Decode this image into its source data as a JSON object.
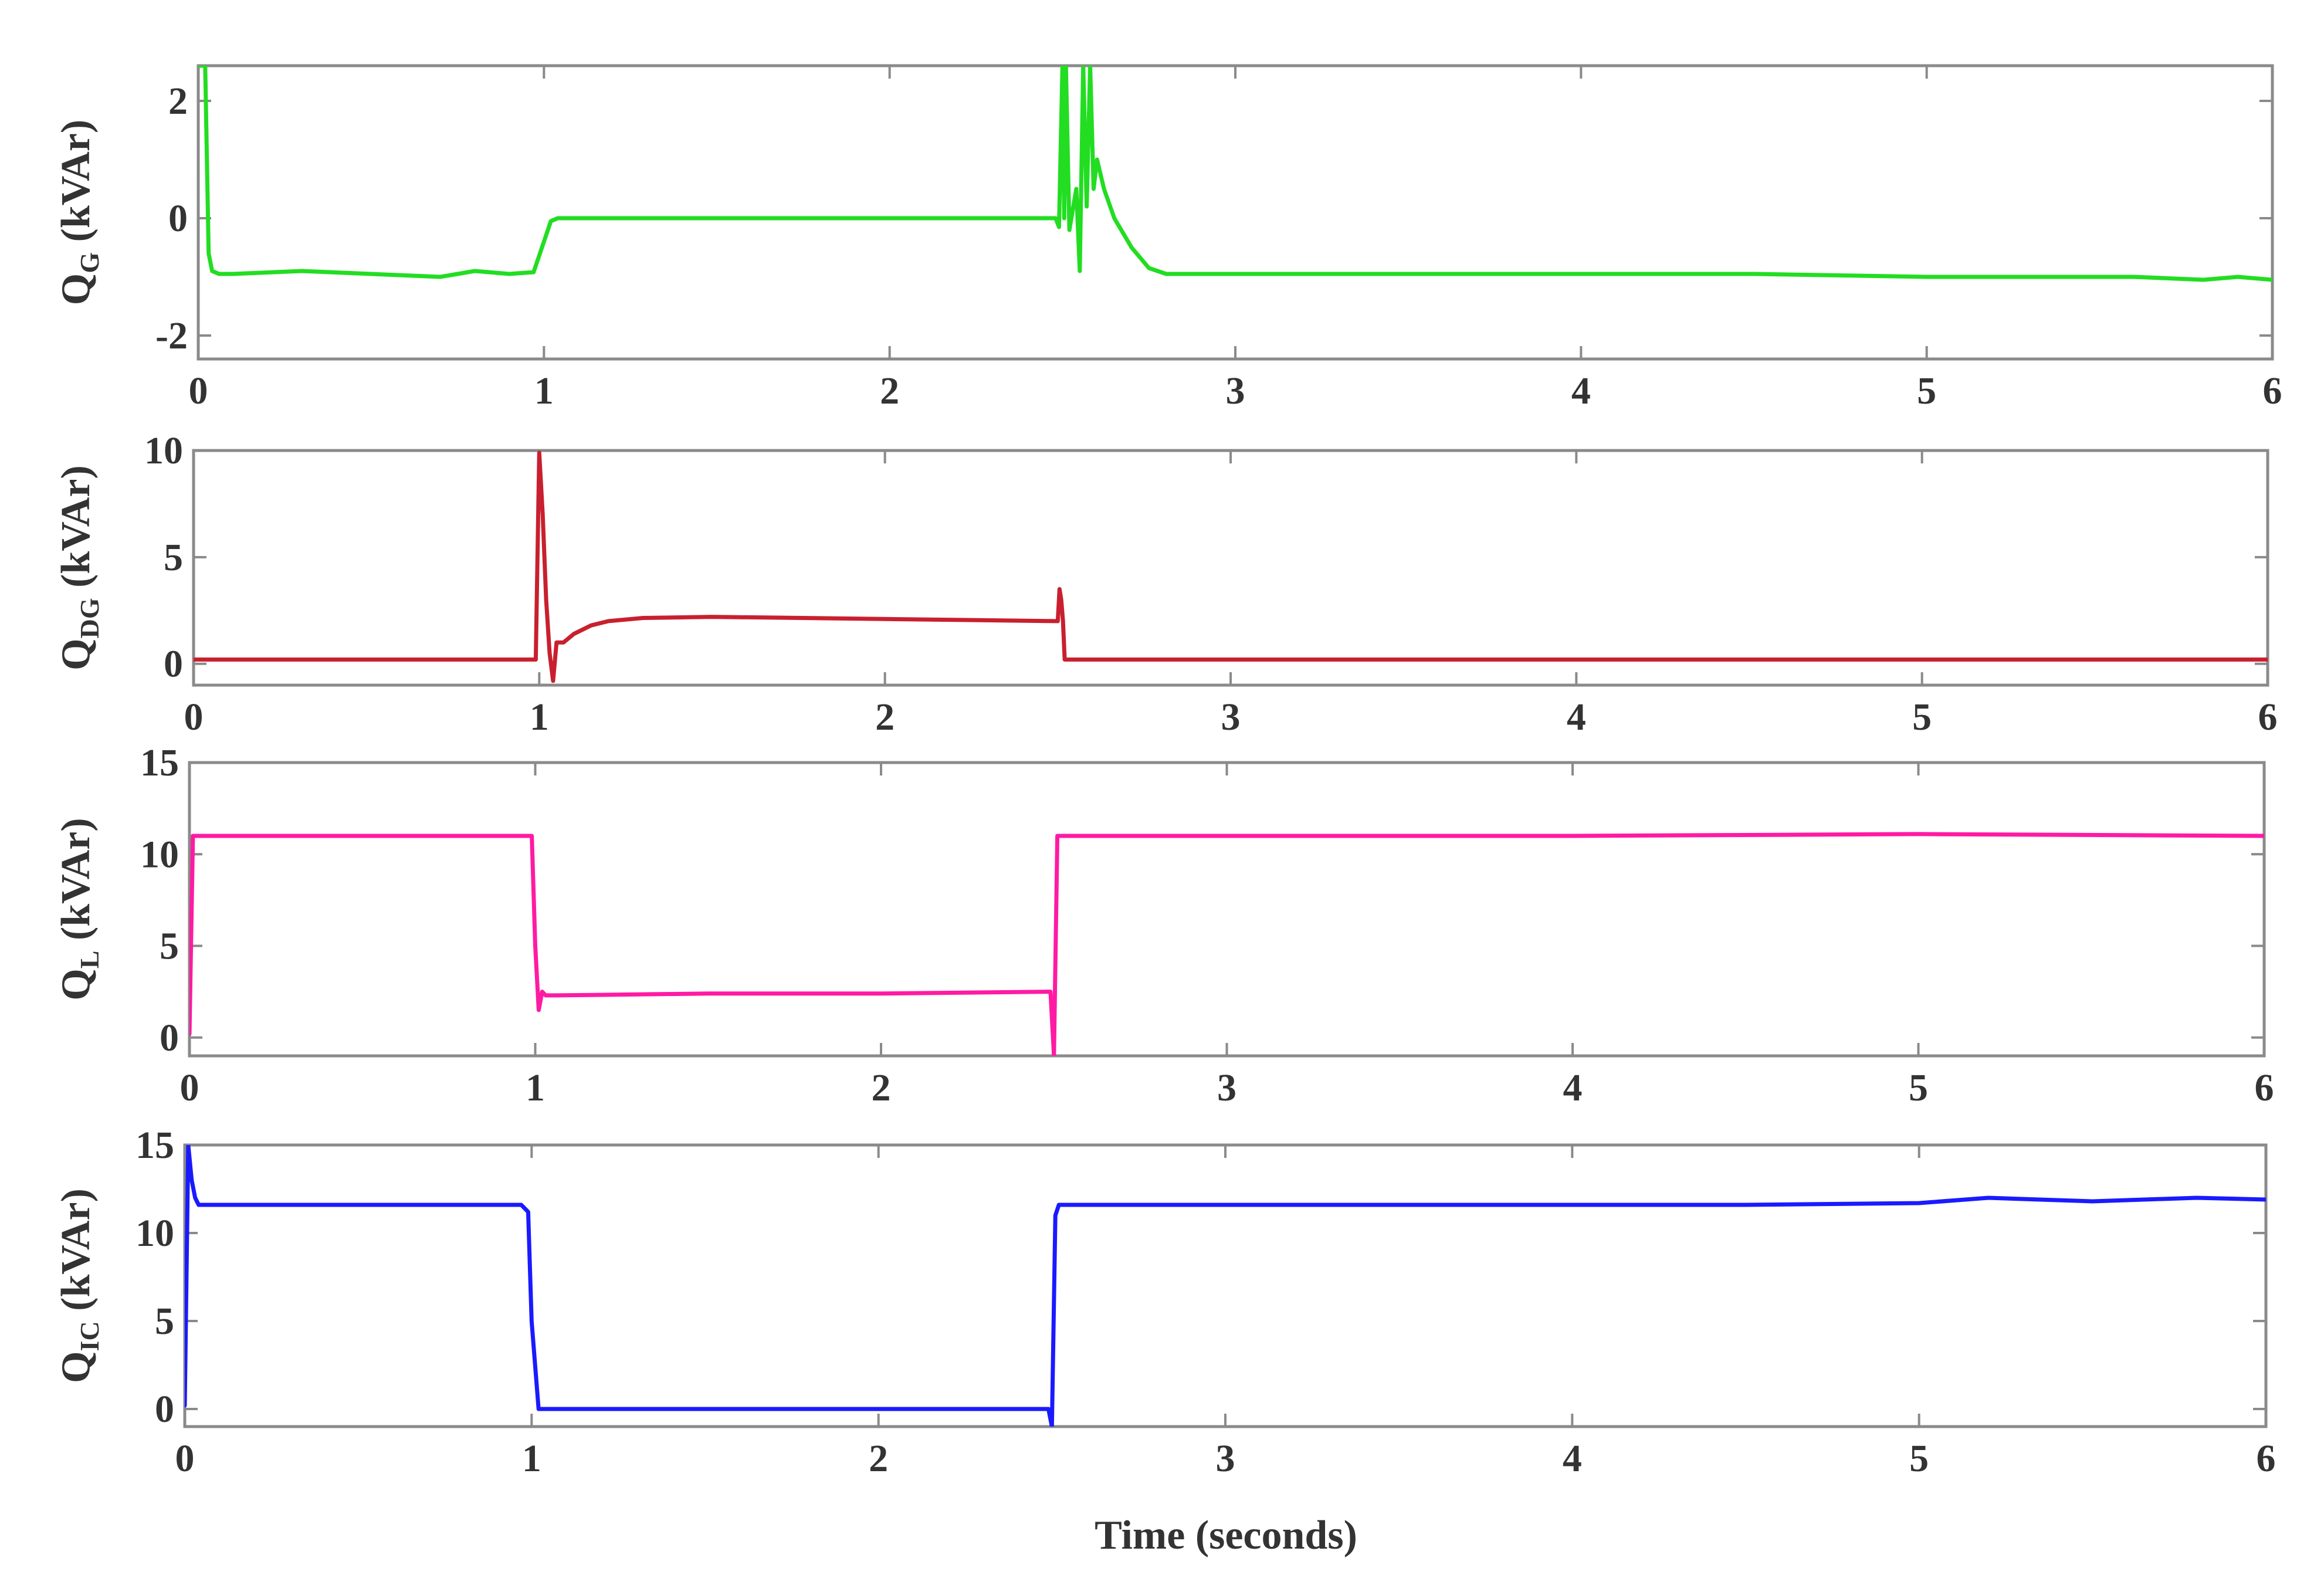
{
  "chart_data": [
    {
      "type": "line",
      "ylabel": "Q",
      "ylabel_sub": "G",
      "ylabel_unit": " (kVAr)",
      "xlim": [
        0,
        6
      ],
      "ylim": [
        -2.4,
        2.6
      ],
      "xticks": [
        0,
        1,
        2,
        3,
        4,
        5,
        6
      ],
      "yticks": [
        2,
        0,
        -2
      ],
      "ytick_labels": [
        "2",
        "0",
        "-2"
      ],
      "color": "#22dd22",
      "series": [
        {
          "x": [
            0.0,
            0.02,
            0.03,
            0.04,
            0.06,
            0.1,
            0.3,
            0.5,
            0.7,
            0.8,
            0.9,
            0.97,
            1.0,
            1.02,
            1.04,
            1.5,
            2.0,
            2.48,
            2.49,
            2.5,
            2.505,
            2.51,
            2.52,
            2.54,
            2.55,
            2.56,
            2.57,
            2.58,
            2.59,
            2.6,
            2.62,
            2.65,
            2.7,
            2.75,
            2.8,
            3.0,
            3.5,
            4.0,
            4.5,
            5.0,
            5.3,
            5.6,
            5.8,
            5.9,
            6.0
          ],
          "y": [
            2.6,
            2.6,
            -0.6,
            -0.9,
            -0.95,
            -0.95,
            -0.9,
            -0.95,
            -1.0,
            -0.9,
            -0.95,
            -0.92,
            -0.4,
            -0.05,
            0.0,
            0.0,
            0.0,
            0.0,
            -0.15,
            2.6,
            0.0,
            2.6,
            -0.2,
            0.5,
            -0.9,
            2.6,
            0.2,
            2.6,
            0.5,
            1.0,
            0.5,
            0.0,
            -0.5,
            -0.85,
            -0.95,
            -0.95,
            -0.95,
            -0.95,
            -0.95,
            -1.0,
            -1.0,
            -1.0,
            -1.05,
            -1.0,
            -1.05
          ]
        }
      ]
    },
    {
      "type": "line",
      "ylabel": "Q",
      "ylabel_sub": "DG",
      "ylabel_unit": " (kVAr)",
      "xlim": [
        0,
        6
      ],
      "ylim": [
        -1,
        10
      ],
      "xticks": [
        0,
        1,
        2,
        3,
        4,
        5,
        6
      ],
      "yticks": [
        10,
        5,
        0
      ],
      "ytick_labels": [
        "10",
        "5",
        "0"
      ],
      "color": "#c8202e",
      "series": [
        {
          "x": [
            0.0,
            0.99,
            1.0,
            1.01,
            1.02,
            1.03,
            1.04,
            1.05,
            1.07,
            1.1,
            1.15,
            1.2,
            1.3,
            1.5,
            2.0,
            2.5,
            2.505,
            2.51,
            2.515,
            2.52,
            2.53,
            6.0
          ],
          "y": [
            0.2,
            0.2,
            9.9,
            7.0,
            3.0,
            0.5,
            -0.8,
            1.0,
            1.0,
            1.4,
            1.8,
            2.0,
            2.15,
            2.2,
            2.1,
            2.0,
            3.5,
            3.0,
            2.0,
            0.2,
            0.2,
            0.2
          ]
        }
      ]
    },
    {
      "type": "line",
      "ylabel": "Q",
      "ylabel_sub": "L",
      "ylabel_unit": " (kVAr)",
      "xlim": [
        0,
        6
      ],
      "ylim": [
        -1,
        15
      ],
      "xticks": [
        0,
        1,
        2,
        3,
        4,
        5,
        6
      ],
      "yticks": [
        15,
        10,
        5,
        0
      ],
      "ytick_labels": [
        "15",
        "10",
        "5",
        "0"
      ],
      "color": "#ff1aa3",
      "series": [
        {
          "x": [
            0.0,
            0.01,
            0.02,
            0.5,
            0.99,
            1.0,
            1.01,
            1.02,
            1.03,
            1.06,
            1.5,
            2.0,
            2.49,
            2.5,
            2.505,
            2.51,
            2.52,
            3.0,
            4.0,
            5.0,
            6.0
          ],
          "y": [
            0.2,
            11.0,
            11.0,
            11.0,
            11.0,
            5.0,
            1.5,
            2.5,
            2.3,
            2.3,
            2.4,
            2.4,
            2.5,
            -1.0,
            5.0,
            11.0,
            11.0,
            11.0,
            11.0,
            11.1,
            11.0
          ]
        }
      ]
    },
    {
      "type": "line",
      "ylabel": "Q",
      "ylabel_sub": "IC",
      "ylabel_unit": " (kVAr)",
      "xlabel": "Time (seconds)",
      "xlim": [
        0,
        6
      ],
      "ylim": [
        -1,
        15
      ],
      "xticks": [
        0,
        1,
        2,
        3,
        4,
        5,
        6
      ],
      "yticks": [
        15,
        10,
        5,
        0
      ],
      "ytick_labels": [
        "15",
        "10",
        "5",
        "0"
      ],
      "color": "#1a1aff",
      "series": [
        {
          "x": [
            0.0,
            0.01,
            0.02,
            0.03,
            0.04,
            0.1,
            0.5,
            0.97,
            0.99,
            1.0,
            1.02,
            1.5,
            2.0,
            2.49,
            2.5,
            2.51,
            2.52,
            3.0,
            4.0,
            4.5,
            5.0,
            5.2,
            5.5,
            5.8,
            6.0
          ],
          "y": [
            0.2,
            15.0,
            13.0,
            12.0,
            11.6,
            11.6,
            11.6,
            11.6,
            11.2,
            5.0,
            0.0,
            0.0,
            0.0,
            0.0,
            -1.0,
            11.0,
            11.6,
            11.6,
            11.6,
            11.6,
            11.7,
            12.0,
            11.8,
            12.0,
            11.9
          ]
        }
      ]
    }
  ]
}
